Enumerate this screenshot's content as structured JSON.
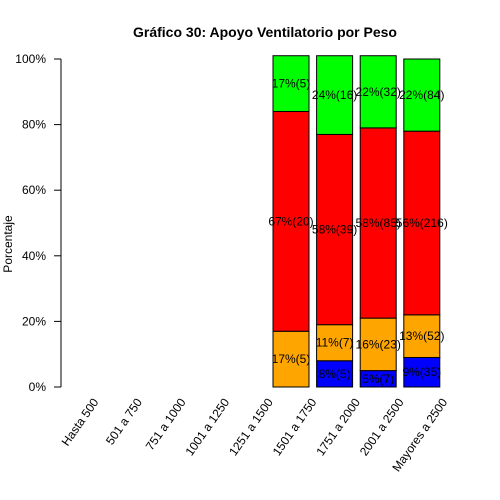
{
  "chart_data": {
    "type": "bar",
    "stacked": true,
    "title": "Gráfico 30: Apoyo Ventilatorio por Peso",
    "xlabel": "",
    "ylabel": "Porcentaje",
    "ylim": [
      0,
      1
    ],
    "yticks": [
      "0%",
      "20%",
      "40%",
      "60%",
      "80%",
      "100%"
    ],
    "grid": false,
    "legend": "none",
    "categories": [
      "Hasta 500",
      "501 a 750",
      "751 a 1000",
      "1001 a 1250",
      "1251 a 1500",
      "1501 a 1750",
      "1751 a 2000",
      "2001 a 2500",
      "Mayores a 2500"
    ],
    "series": [
      {
        "color": "#0000ff",
        "values": [
          0,
          0,
          0,
          0,
          0,
          0,
          0.08,
          0.05,
          0.09
        ],
        "labels": [
          "",
          "",
          "",
          "",
          "",
          "",
          "8%(5)",
          "5%(7)",
          "9%(35)"
        ]
      },
      {
        "color": "#ffa500",
        "values": [
          0,
          0,
          0,
          0,
          0,
          0.17,
          0.11,
          0.16,
          0.13
        ],
        "labels": [
          "",
          "",
          "",
          "",
          "",
          "17%(5)",
          "11%(7)",
          "16%(23)",
          "13%(52)"
        ]
      },
      {
        "color": "#ff0000",
        "values": [
          0,
          0,
          0,
          0,
          0,
          0.67,
          0.58,
          0.58,
          0.56
        ],
        "labels": [
          "",
          "",
          "",
          "",
          "",
          "67%(20)",
          "58%(39)",
          "58%(85)",
          "56%(216)"
        ]
      },
      {
        "color": "#00ff00",
        "values": [
          0,
          0,
          0,
          0,
          0,
          0.17,
          0.24,
          0.22,
          0.22
        ],
        "labels": [
          "",
          "",
          "",
          "",
          "",
          "17%(5)",
          "24%(16)",
          "22%(32)",
          "22%(84)"
        ]
      }
    ]
  }
}
